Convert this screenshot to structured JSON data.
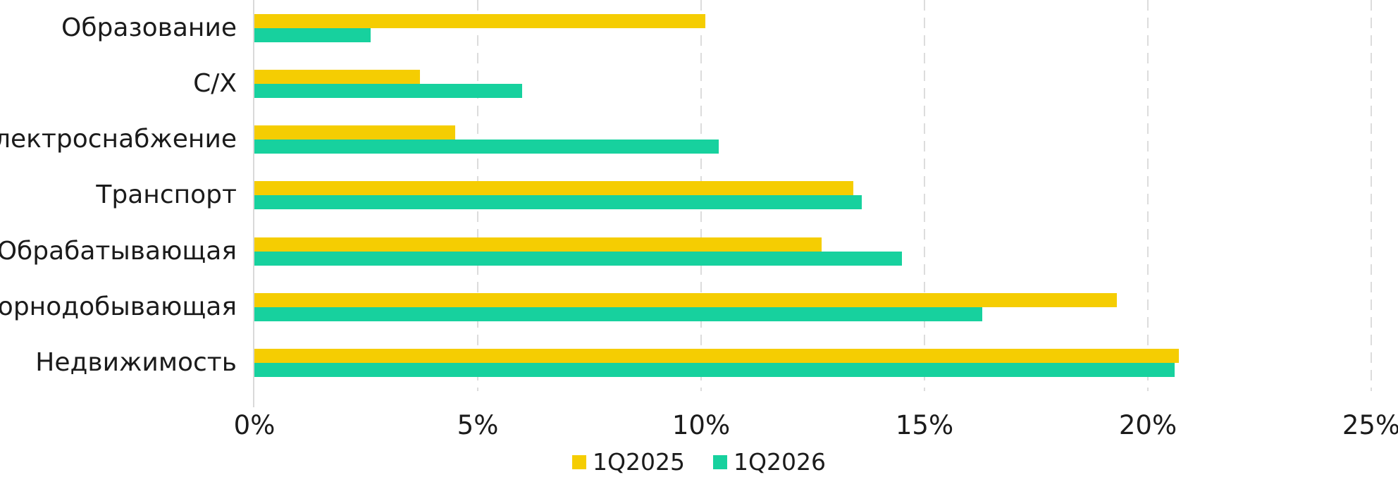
{
  "chart_data": {
    "type": "bar",
    "orientation": "horizontal",
    "grouped": true,
    "title": "",
    "categories": [
      "Образование",
      "С/Х",
      "Электроснабжение",
      "Транспорт",
      "Обрабатывающая",
      "Горнодобывающая",
      "Недвижимость"
    ],
    "series": [
      {
        "name": "1Q2025",
        "color": "#f5cd02",
        "values": [
          10.1,
          3.7,
          4.5,
          13.4,
          12.7,
          19.3,
          20.7
        ]
      },
      {
        "name": "1Q2026",
        "color": "#17d19e",
        "values": [
          2.6,
          6.0,
          10.4,
          13.6,
          14.5,
          16.3,
          20.6
        ]
      }
    ],
    "value_unit": "%",
    "xlim": [
      0,
      25
    ],
    "x_tick_values": [
      0,
      5,
      10,
      15,
      20,
      25
    ],
    "x_tick_labels": [
      "0%",
      "5%",
      "10%",
      "15%",
      "20%",
      "25%"
    ],
    "grid": "dashed-vertical",
    "gridline_color": "#d9d9d9",
    "legend_position": "bottom-center",
    "text_color": "#1b1b1b"
  }
}
